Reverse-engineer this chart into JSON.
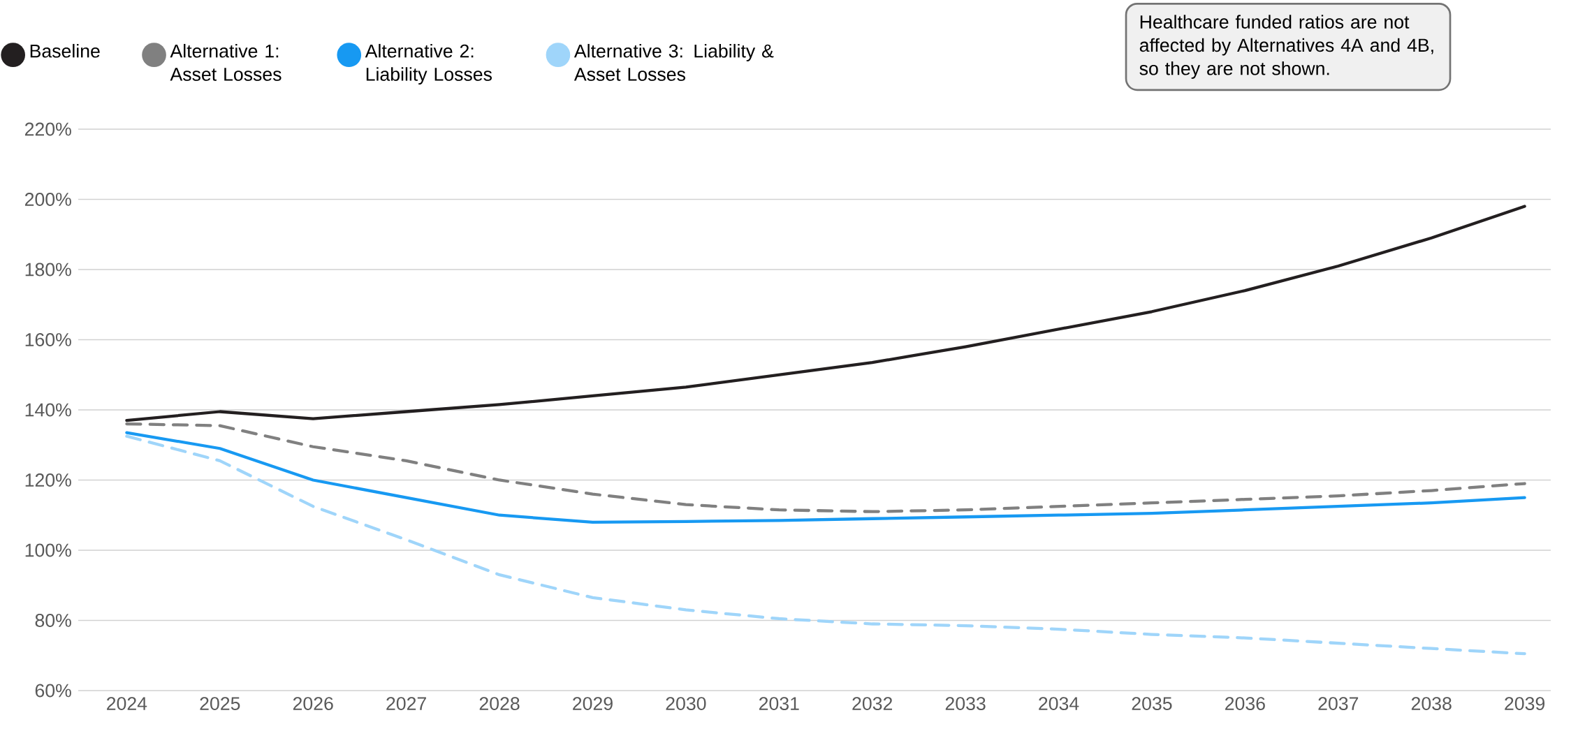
{
  "chart_data": {
    "type": "line",
    "categories": [
      "2024",
      "2025",
      "2026",
      "2027",
      "2028",
      "2029",
      "2030",
      "2031",
      "2032",
      "2033",
      "2034",
      "2035",
      "2036",
      "2037",
      "2038",
      "2039"
    ],
    "series": [
      {
        "name": "Baseline",
        "color": "#231f20",
        "line_style": "solid",
        "values": [
          137,
          139.5,
          137.5,
          139.5,
          141.5,
          144,
          146.5,
          150,
          153.5,
          158,
          163,
          168,
          174,
          181,
          189,
          198
        ]
      },
      {
        "name": "Alternative 1: Asset Losses",
        "color": "#808080",
        "line_style": "dashed",
        "values": [
          136,
          135.5,
          129.5,
          125.5,
          120,
          116,
          113,
          111.5,
          111,
          111.5,
          112.5,
          113.5,
          114.5,
          115.5,
          117,
          119
        ]
      },
      {
        "name": "Alternative 2: Liability Losses",
        "color": "#1799f2",
        "line_style": "solid",
        "values": [
          133.5,
          129,
          120,
          115,
          110,
          108,
          108.2,
          108.5,
          109,
          109.5,
          110,
          110.5,
          111.5,
          112.5,
          113.5,
          115
        ]
      },
      {
        "name": "Alternative 3: Liability & Asset Losses",
        "color": "#9fd5fa",
        "line_style": "dashed",
        "values": [
          132.5,
          125.5,
          112.5,
          103,
          93,
          86.5,
          83,
          80.5,
          79,
          78.5,
          77.5,
          76,
          75,
          73.5,
          72,
          70.5
        ]
      }
    ],
    "ylim": [
      60,
      220
    ],
    "yticks": [
      {
        "value": 60,
        "label": "60%"
      },
      {
        "value": 80,
        "label": "80%"
      },
      {
        "value": 100,
        "label": "100%"
      },
      {
        "value": 120,
        "label": "120%"
      },
      {
        "value": 140,
        "label": "140%"
      },
      {
        "value": 160,
        "label": "160%"
      },
      {
        "value": 180,
        "label": "180%"
      },
      {
        "value": 200,
        "label": "200%"
      },
      {
        "value": 220,
        "label": "220%"
      }
    ],
    "grid": "y",
    "legend": "top left",
    "marker": "none",
    "annotations": [
      "Healthcare funded ratios are not affected by Alternatives 4A and 4B, so they are not shown."
    ]
  }
}
